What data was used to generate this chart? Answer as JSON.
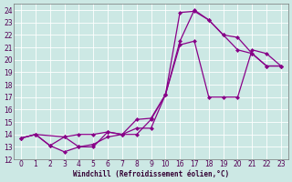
{
  "xlabel": "Windchill (Refroidissement éolien,°C)",
  "bg_color": "#cce8e4",
  "line_color": "#880088",
  "grid_color": "#ffffff",
  "ylim": [
    12,
    24.5
  ],
  "yticks": [
    12,
    13,
    14,
    15,
    16,
    17,
    18,
    19,
    20,
    21,
    22,
    23,
    24
  ],
  "xticks_left": [
    0,
    1,
    2,
    3,
    4,
    5,
    6,
    7,
    8,
    9,
    10
  ],
  "xticks_right": [
    16,
    17,
    18,
    19,
    20,
    21,
    22,
    23
  ],
  "xlim": [
    -0.5,
    24.0
  ],
  "line1_x": [
    0,
    1,
    2,
    3,
    4,
    5,
    6,
    7,
    8,
    9,
    10,
    16,
    17,
    18,
    19,
    20,
    21,
    22,
    23
  ],
  "line1_y": [
    13.7,
    14.0,
    13.1,
    12.6,
    13.0,
    13.2,
    13.8,
    14.0,
    14.0,
    15.2,
    17.2,
    21.2,
    21.5,
    17.0,
    17.0,
    17.0,
    20.8,
    20.5,
    19.5
  ],
  "line2_x": [
    0,
    1,
    2,
    3,
    4,
    5,
    6,
    7,
    8,
    9,
    10,
    16,
    17,
    18,
    19,
    20,
    21,
    22,
    23
  ],
  "line2_y": [
    13.7,
    14.0,
    13.1,
    13.8,
    14.0,
    14.0,
    14.2,
    14.0,
    15.2,
    15.3,
    17.2,
    23.8,
    23.9,
    23.2,
    22.0,
    20.8,
    20.5,
    19.5,
    19.5
  ],
  "line3_x": [
    0,
    1,
    3,
    4,
    5,
    6,
    7,
    8,
    9,
    10,
    16,
    17,
    18,
    19,
    20,
    21,
    22,
    23
  ],
  "line3_y": [
    13.7,
    14.0,
    13.8,
    13.0,
    13.0,
    14.2,
    14.0,
    14.5,
    14.5,
    17.2,
    21.5,
    24.0,
    23.2,
    22.0,
    21.8,
    20.5,
    19.5,
    19.5
  ]
}
